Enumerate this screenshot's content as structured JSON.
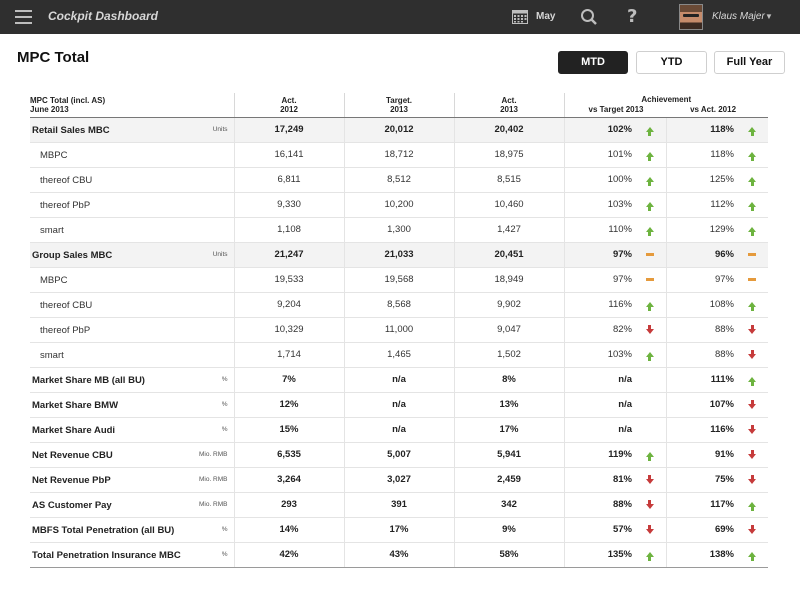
{
  "topbar": {
    "app_title": "Cockpit Dashboard",
    "month": "May",
    "user_name": "Klaus Majer",
    "icons": [
      "menu-icon",
      "calendar-icon",
      "search-icon",
      "help-icon",
      "chevron-down-icon"
    ]
  },
  "page": {
    "title": "MPC Total",
    "periods": [
      "MTD",
      "YTD",
      "Full Year"
    ],
    "active_period": "MTD"
  },
  "colors": {
    "topbar_bg": "#2f2f2f",
    "active_button": "#222222",
    "trend_up": "#6db33f",
    "trend_down": "#c63b3b",
    "trend_flat": "#e59a3c"
  },
  "table": {
    "header": {
      "label_line1": "MPC Total (incl. AS)",
      "label_line2": "June 2013",
      "col1_line1": "Act.",
      "col1_line2": "2012",
      "col2_line1": "Target.",
      "col2_line2": "2013",
      "col3_line1": "Act.",
      "col3_line2": "2013",
      "achievement": "Achievement",
      "vs_target": "vs Target 2013",
      "vs_act": "vs Act. 2012"
    },
    "rows": [
      {
        "label": "Retail Sales MBC",
        "unit": "Units",
        "act2012": "17,249",
        "target2013": "20,012",
        "act2013": "20,402",
        "vs_target": "102%",
        "vs_target_trend": "up",
        "vs_act": "118%",
        "vs_act_trend": "up"
      },
      {
        "label": "MBPC",
        "unit": "",
        "act2012": "16,141",
        "target2013": "18,712",
        "act2013": "18,975",
        "vs_target": "101%",
        "vs_target_trend": "up",
        "vs_act": "118%",
        "vs_act_trend": "up"
      },
      {
        "label": "thereof CBU",
        "unit": "",
        "act2012": "6,811",
        "target2013": "8,512",
        "act2013": "8,515",
        "vs_target": "100%",
        "vs_target_trend": "up",
        "vs_act": "125%",
        "vs_act_trend": "up"
      },
      {
        "label": "thereof PbP",
        "unit": "",
        "act2012": "9,330",
        "target2013": "10,200",
        "act2013": "10,460",
        "vs_target": "103%",
        "vs_target_trend": "up",
        "vs_act": "112%",
        "vs_act_trend": "up"
      },
      {
        "label": "smart",
        "unit": "",
        "act2012": "1,108",
        "target2013": "1,300",
        "act2013": "1,427",
        "vs_target": "110%",
        "vs_target_trend": "up",
        "vs_act": "129%",
        "vs_act_trend": "up"
      },
      {
        "label": "Group Sales MBC",
        "unit": "Units",
        "act2012": "21,247",
        "target2013": "21,033",
        "act2013": "20,451",
        "vs_target": "97%",
        "vs_target_trend": "flat",
        "vs_act": "96%",
        "vs_act_trend": "flat"
      },
      {
        "label": "MBPC",
        "unit": "",
        "act2012": "19,533",
        "target2013": "19,568",
        "act2013": "18,949",
        "vs_target": "97%",
        "vs_target_trend": "flat",
        "vs_act": "97%",
        "vs_act_trend": "flat"
      },
      {
        "label": "thereof CBU",
        "unit": "",
        "act2012": "9,204",
        "target2013": "8,568",
        "act2013": "9,902",
        "vs_target": "116%",
        "vs_target_trend": "up",
        "vs_act": "108%",
        "vs_act_trend": "up"
      },
      {
        "label": "thereof PbP",
        "unit": "",
        "act2012": "10,329",
        "target2013": "11,000",
        "act2013": "9,047",
        "vs_target": "82%",
        "vs_target_trend": "down",
        "vs_act": "88%",
        "vs_act_trend": "down"
      },
      {
        "label": "smart",
        "unit": "",
        "act2012": "1,714",
        "target2013": "1,465",
        "act2013": "1,502",
        "vs_target": "103%",
        "vs_target_trend": "up",
        "vs_act": "88%",
        "vs_act_trend": "down"
      },
      {
        "label": "Market Share MB (all BU)",
        "unit": "%",
        "act2012": "7%",
        "target2013": "n/a",
        "act2013": "8%",
        "vs_target": "n/a",
        "vs_target_trend": "",
        "vs_act": "111%",
        "vs_act_trend": "up"
      },
      {
        "label": "Market Share BMW",
        "unit": "%",
        "act2012": "12%",
        "target2013": "n/a",
        "act2013": "13%",
        "vs_target": "n/a",
        "vs_target_trend": "",
        "vs_act": "107%",
        "vs_act_trend": "down"
      },
      {
        "label": "Market Share Audi",
        "unit": "%",
        "act2012": "15%",
        "target2013": "n/a",
        "act2013": "17%",
        "vs_target": "n/a",
        "vs_target_trend": "",
        "vs_act": "116%",
        "vs_act_trend": "down"
      },
      {
        "label": "Net Revenue CBU",
        "unit": "Mio. RMB",
        "act2012": "6,535",
        "target2013": "5,007",
        "act2013": "5,941",
        "vs_target": "119%",
        "vs_target_trend": "up",
        "vs_act": "91%",
        "vs_act_trend": "down"
      },
      {
        "label": "Net Revenue PbP",
        "unit": "Mio. RMB",
        "act2012": "3,264",
        "target2013": "3,027",
        "act2013": "2,459",
        "vs_target": "81%",
        "vs_target_trend": "down",
        "vs_act": "75%",
        "vs_act_trend": "down"
      },
      {
        "label": "AS Customer Pay",
        "unit": "Mio. RMB",
        "act2012": "293",
        "target2013": "391",
        "act2013": "342",
        "vs_target": "88%",
        "vs_target_trend": "down",
        "vs_act": "117%",
        "vs_act_trend": "up"
      },
      {
        "label": "MBFS Total Penetration (all BU)",
        "unit": "%",
        "act2012": "14%",
        "target2013": "17%",
        "act2013": "9%",
        "vs_target": "57%",
        "vs_target_trend": "down",
        "vs_act": "69%",
        "vs_act_trend": "down"
      },
      {
        "label": "Total Penetration Insurance MBC",
        "unit": "%",
        "act2012": "42%",
        "target2013": "43%",
        "act2013": "58%",
        "vs_target": "135%",
        "vs_target_trend": "up",
        "vs_act": "138%",
        "vs_act_trend": "up"
      }
    ]
  }
}
